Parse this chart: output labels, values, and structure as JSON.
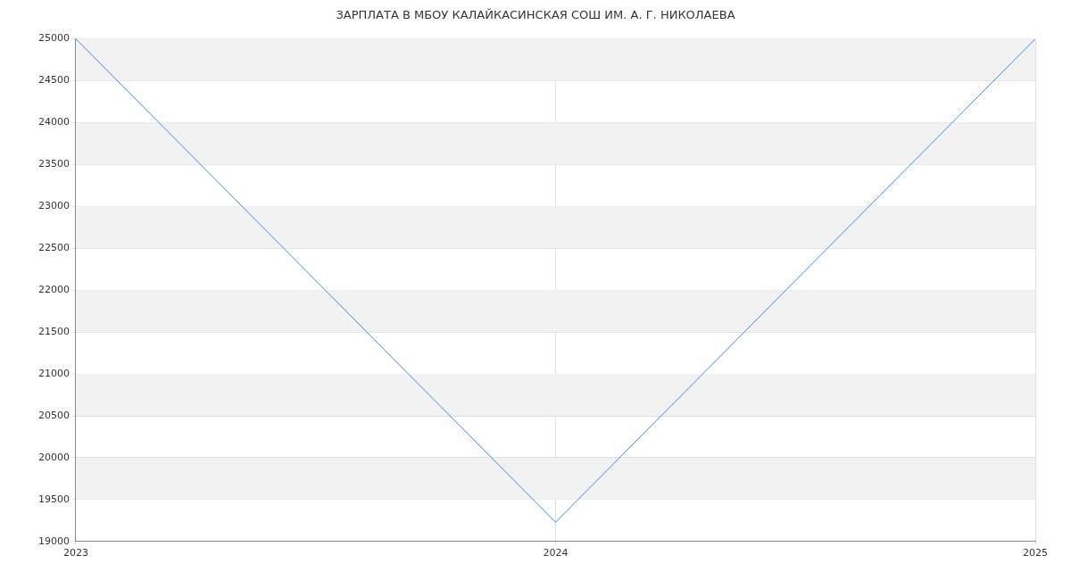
{
  "chart_data": {
    "type": "line",
    "title": "ЗАРПЛАТА В МБОУ КАЛАЙКАСИНСКАЯ СОШ ИМ. А. Г. НИКОЛАЕВА",
    "x": [
      2023,
      2024,
      2025
    ],
    "xlim": [
      2023,
      2025
    ],
    "xticks": [
      2023,
      2024,
      2025
    ],
    "series": [
      {
        "color": "#4a86e8",
        "values": [
          25000,
          19230,
          25000
        ]
      }
    ],
    "ylim": [
      19000,
      25000
    ],
    "yticks": [
      19000,
      19500,
      20000,
      20500,
      21000,
      21500,
      22000,
      22500,
      23000,
      23500,
      24000,
      24500,
      25000
    ],
    "grid": true,
    "legend": false,
    "marker": "none",
    "line_style": "solid"
  }
}
